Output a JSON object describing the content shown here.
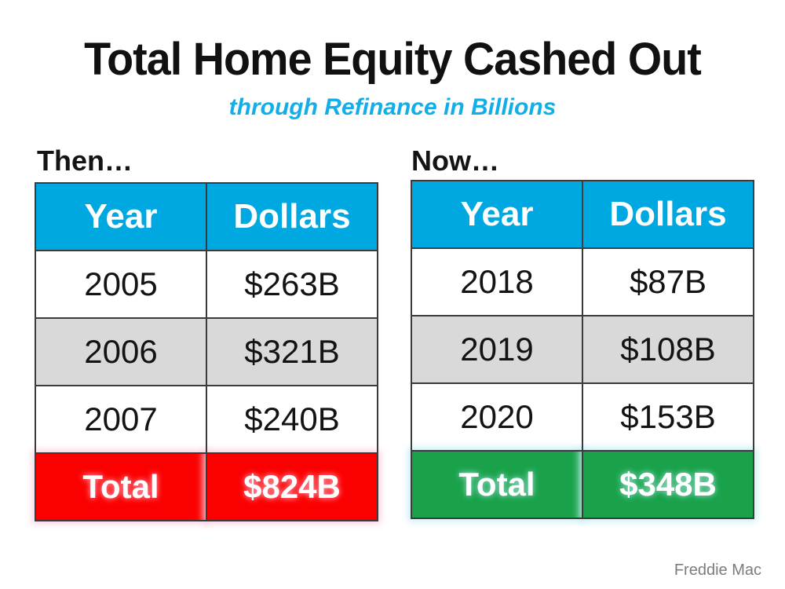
{
  "slide": {
    "title": "Total Home Equity Cashed Out",
    "subtitle": "through Refinance in Billions",
    "source": "Freddie Mac"
  },
  "colors": {
    "title_text": "#111111",
    "subtitle_text": "#12AEE8",
    "header_bg": "#00A8E2",
    "header_text": "#FFFFFF",
    "alt_row_bg": "#D9D9D9",
    "cell_text": "#131313",
    "border": "#3B3B3B",
    "then_total_bg": "#FB0000",
    "then_total_glow": "#F9D3E4",
    "now_total_bg": "#19A24A",
    "now_total_glow": "#C9EEF4",
    "total_text": "#FFFFFF",
    "source_text": "#7C7C7C"
  },
  "tables": [
    {
      "label": "Then…",
      "headers": [
        "Year",
        "Dollars"
      ],
      "rows": [
        [
          "2005",
          "$263B"
        ],
        [
          "2006",
          "$321B"
        ],
        [
          "2007",
          "$240B"
        ]
      ],
      "total": {
        "label": "Total",
        "value": "$824B"
      }
    },
    {
      "label": "Now…",
      "headers": [
        "Year",
        "Dollars"
      ],
      "rows": [
        [
          "2018",
          "$87B"
        ],
        [
          "2019",
          "$108B"
        ],
        [
          "2020",
          "$153B"
        ]
      ],
      "total": {
        "label": "Total",
        "value": "$348B"
      }
    }
  ],
  "chart_data": [
    {
      "type": "table",
      "title": "Then…",
      "columns": [
        "Year",
        "Dollars"
      ],
      "rows": [
        [
          "2005",
          "$263B"
        ],
        [
          "2006",
          "$321B"
        ],
        [
          "2007",
          "$240B"
        ],
        [
          "Total",
          "$824B"
        ]
      ],
      "values_billions": {
        "2005": 263,
        "2006": 321,
        "2007": 240,
        "total": 824
      }
    },
    {
      "type": "table",
      "title": "Now…",
      "columns": [
        "Year",
        "Dollars"
      ],
      "rows": [
        [
          "2018",
          "$87B"
        ],
        [
          "2019",
          "$108B"
        ],
        [
          "2020",
          "$153B"
        ],
        [
          "Total",
          "$348B"
        ]
      ],
      "values_billions": {
        "2018": 87,
        "2019": 108,
        "2020": 153,
        "total": 348
      }
    }
  ]
}
